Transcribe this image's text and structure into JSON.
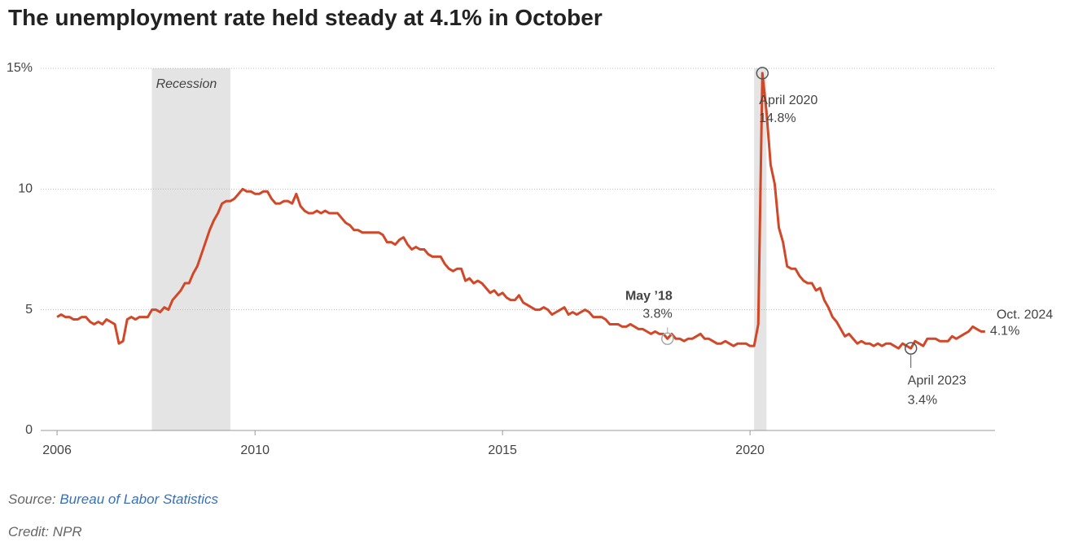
{
  "chart_data": {
    "type": "line",
    "title": "The unemployment rate held steady at 4.1% in October",
    "source_label": "Source:",
    "source": "Bureau of Labor Statistics",
    "credit": "Credit: NPR",
    "xlim": [
      2005.67,
      2024.95
    ],
    "xticks": [
      2006,
      2010,
      2015,
      2020
    ],
    "ylim": [
      0,
      15
    ],
    "yticks": [
      0,
      5,
      10,
      {
        "value": 15,
        "label": "15%"
      }
    ],
    "grid": true,
    "shaded": [
      {
        "start": 2007.917,
        "end": 2009.5,
        "label": "Recession"
      },
      {
        "start": 2020.083,
        "end": 2020.333
      }
    ],
    "x": [
      2006,
      2006.083,
      2006.167,
      2006.25,
      2006.333,
      2006.417,
      2006.5,
      2006.583,
      2006.667,
      2006.75,
      2006.833,
      2006.917,
      2007,
      2007.083,
      2007.167,
      2007.25,
      2007.333,
      2007.417,
      2007.5,
      2007.583,
      2007.667,
      2007.75,
      2007.833,
      2007.917,
      2008,
      2008.083,
      2008.167,
      2008.25,
      2008.333,
      2008.417,
      2008.5,
      2008.583,
      2008.667,
      2008.75,
      2008.833,
      2008.917,
      2009,
      2009.083,
      2009.167,
      2009.25,
      2009.333,
      2009.417,
      2009.5,
      2009.583,
      2009.667,
      2009.75,
      2009.833,
      2009.917,
      2010,
      2010.083,
      2010.167,
      2010.25,
      2010.333,
      2010.417,
      2010.5,
      2010.583,
      2010.667,
      2010.75,
      2010.833,
      2010.917,
      2011,
      2011.083,
      2011.167,
      2011.25,
      2011.333,
      2011.417,
      2011.5,
      2011.583,
      2011.667,
      2011.75,
      2011.833,
      2011.917,
      2012,
      2012.083,
      2012.167,
      2012.25,
      2012.333,
      2012.417,
      2012.5,
      2012.583,
      2012.667,
      2012.75,
      2012.833,
      2012.917,
      2013,
      2013.083,
      2013.167,
      2013.25,
      2013.333,
      2013.417,
      2013.5,
      2013.583,
      2013.667,
      2013.75,
      2013.833,
      2013.917,
      2014,
      2014.083,
      2014.167,
      2014.25,
      2014.333,
      2014.417,
      2014.5,
      2014.583,
      2014.667,
      2014.75,
      2014.833,
      2014.917,
      2015,
      2015.083,
      2015.167,
      2015.25,
      2015.333,
      2015.417,
      2015.5,
      2015.583,
      2015.667,
      2015.75,
      2015.833,
      2015.917,
      2016,
      2016.083,
      2016.167,
      2016.25,
      2016.333,
      2016.417,
      2016.5,
      2016.583,
      2016.667,
      2016.75,
      2016.833,
      2016.917,
      2017,
      2017.083,
      2017.167,
      2017.25,
      2017.333,
      2017.417,
      2017.5,
      2017.583,
      2017.667,
      2017.75,
      2017.833,
      2017.917,
      2018,
      2018.083,
      2018.167,
      2018.25,
      2018.333,
      2018.417,
      2018.5,
      2018.583,
      2018.667,
      2018.75,
      2018.833,
      2018.917,
      2019,
      2019.083,
      2019.167,
      2019.25,
      2019.333,
      2019.417,
      2019.5,
      2019.583,
      2019.667,
      2019.75,
      2019.833,
      2019.917,
      2020,
      2020.083,
      2020.167,
      2020.25,
      2020.333,
      2020.417,
      2020.5,
      2020.583,
      2020.667,
      2020.75,
      2020.833,
      2020.917,
      2021,
      2021.083,
      2021.167,
      2021.25,
      2021.333,
      2021.417,
      2021.5,
      2021.583,
      2021.667,
      2021.75,
      2021.833,
      2021.917,
      2022,
      2022.083,
      2022.167,
      2022.25,
      2022.333,
      2022.417,
      2022.5,
      2022.583,
      2022.667,
      2022.75,
      2022.833,
      2022.917,
      2023,
      2023.083,
      2023.167,
      2023.25,
      2023.333,
      2023.417,
      2023.5,
      2023.583,
      2023.667,
      2023.75,
      2023.833,
      2023.917,
      2024,
      2024.083,
      2024.167,
      2024.25,
      2024.333,
      2024.417,
      2024.5,
      2024.583,
      2024.667,
      2024.75
    ],
    "series": [
      {
        "color": "#d24727",
        "values": [
          4.7,
          4.8,
          4.7,
          4.7,
          4.6,
          4.6,
          4.7,
          4.7,
          4.5,
          4.4,
          4.5,
          4.4,
          4.6,
          4.5,
          4.4,
          3.6,
          3.7,
          4.6,
          4.7,
          4.6,
          4.7,
          4.7,
          4.7,
          5.0,
          5.0,
          4.9,
          5.1,
          5.0,
          5.4,
          5.6,
          5.8,
          6.1,
          6.1,
          6.5,
          6.8,
          7.3,
          7.8,
          8.3,
          8.7,
          9.0,
          9.4,
          9.5,
          9.5,
          9.6,
          9.8,
          10.0,
          9.9,
          9.9,
          9.8,
          9.8,
          9.9,
          9.9,
          9.6,
          9.4,
          9.4,
          9.5,
          9.5,
          9.4,
          9.8,
          9.3,
          9.1,
          9.0,
          9.0,
          9.1,
          9.0,
          9.1,
          9.0,
          9.0,
          9.0,
          8.8,
          8.6,
          8.5,
          8.3,
          8.3,
          8.2,
          8.2,
          8.2,
          8.2,
          8.2,
          8.1,
          7.8,
          7.8,
          7.7,
          7.9,
          8.0,
          7.7,
          7.5,
          7.6,
          7.5,
          7.5,
          7.3,
          7.2,
          7.2,
          7.2,
          6.9,
          6.7,
          6.6,
          6.7,
          6.7,
          6.2,
          6.3,
          6.1,
          6.2,
          6.1,
          5.9,
          5.7,
          5.8,
          5.6,
          5.7,
          5.5,
          5.4,
          5.4,
          5.6,
          5.3,
          5.2,
          5.1,
          5.0,
          5.0,
          5.1,
          5.0,
          4.8,
          4.9,
          5.0,
          5.1,
          4.8,
          4.9,
          4.8,
          4.9,
          5.0,
          4.9,
          4.7,
          4.7,
          4.7,
          4.6,
          4.4,
          4.4,
          4.4,
          4.3,
          4.3,
          4.4,
          4.3,
          4.2,
          4.2,
          4.1,
          4.0,
          4.1,
          4.0,
          4.0,
          3.8,
          4.0,
          3.8,
          3.8,
          3.7,
          3.8,
          3.8,
          3.9,
          4.0,
          3.8,
          3.8,
          3.7,
          3.6,
          3.6,
          3.7,
          3.6,
          3.5,
          3.6,
          3.6,
          3.6,
          3.5,
          3.5,
          4.4,
          14.8,
          13.2,
          11.0,
          10.2,
          8.4,
          7.8,
          6.8,
          6.7,
          6.7,
          6.4,
          6.2,
          6.1,
          6.1,
          5.8,
          5.9,
          5.4,
          5.1,
          4.7,
          4.5,
          4.2,
          3.9,
          4.0,
          3.8,
          3.6,
          3.7,
          3.6,
          3.6,
          3.5,
          3.6,
          3.5,
          3.6,
          3.6,
          3.5,
          3.4,
          3.6,
          3.5,
          3.4,
          3.7,
          3.6,
          3.5,
          3.8,
          3.8,
          3.8,
          3.7,
          3.7,
          3.7,
          3.9,
          3.8,
          3.9,
          4.0,
          4.1,
          4.3,
          4.2,
          4.1,
          4.1
        ]
      }
    ],
    "annotations": [
      {
        "x": 2018.333,
        "y": 3.8,
        "label": "May ’18",
        "value_label": "3.8%"
      },
      {
        "x": 2020.25,
        "y": 14.8,
        "label": "April 2020",
        "value_label": "14.8%"
      },
      {
        "x": 2023.25,
        "y": 3.4,
        "label": "April 2023",
        "value_label": "3.4%"
      },
      {
        "x": 2024.75,
        "y": 4.1,
        "label": "Oct. 2024",
        "value_label": "4.1%"
      }
    ]
  }
}
